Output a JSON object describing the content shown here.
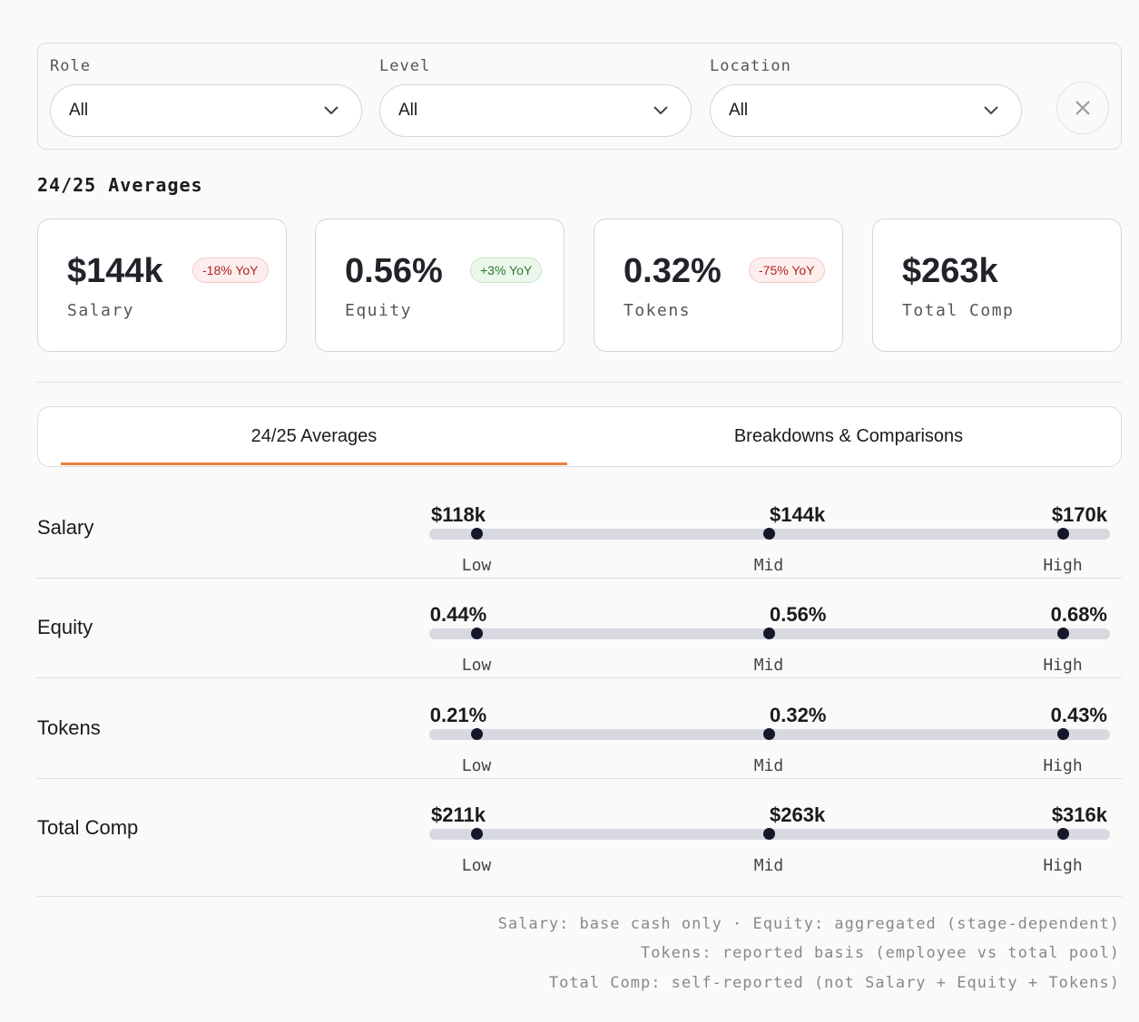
{
  "filters": [
    {
      "label": "Role",
      "value": "All"
    },
    {
      "label": "Level",
      "value": "All"
    },
    {
      "label": "Location",
      "value": "All"
    }
  ],
  "section_title": "24/25 Averages",
  "cards": [
    {
      "value": "$144k",
      "badge": "-18% YoY",
      "label": "Salary"
    },
    {
      "value": "0.56%",
      "badge": "+3% YoY",
      "label": "Equity"
    },
    {
      "value": "0.32%",
      "badge": "-75% YoY",
      "label": "Tokens"
    },
    {
      "value": "$263k",
      "label": "Total Comp"
    }
  ],
  "tabs": [
    "24/25 Averages",
    "Breakdowns & Comparisons"
  ],
  "ranges": [
    {
      "name": "Salary",
      "points": [
        {
          "value": "$118k",
          "label": "Low"
        },
        {
          "value": "$144k",
          "label": "Mid"
        },
        {
          "value": "$170k",
          "label": "High"
        }
      ]
    },
    {
      "name": "Equity",
      "points": [
        {
          "value": "0.44%",
          "label": "Low"
        },
        {
          "value": "0.56%",
          "label": "Mid"
        },
        {
          "value": "0.68%",
          "label": "High"
        }
      ]
    },
    {
      "name": "Tokens",
      "points": [
        {
          "value": "0.21%",
          "label": "Low"
        },
        {
          "value": "0.32%",
          "label": "Mid"
        },
        {
          "value": "0.43%",
          "label": "High"
        }
      ]
    },
    {
      "name": "Total Comp",
      "points": [
        {
          "value": "$211k",
          "label": "Low"
        },
        {
          "value": "$263k",
          "label": "Mid"
        },
        {
          "value": "$316k",
          "label": "High"
        }
      ]
    }
  ],
  "notes": [
    "Salary: base cash only · Equity: aggregated (stage-dependent)",
    "Tokens: reported basis (employee vs total pool)",
    "Total Comp: self-reported (not Salary + Equity + Tokens)"
  ]
}
